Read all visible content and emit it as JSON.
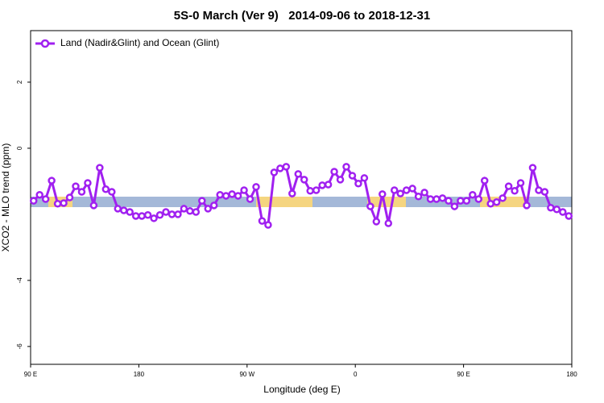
{
  "chart_data": {
    "type": "line",
    "title": "5S-0 March (Ver 9)   2014-09-06 to 2018-12-31",
    "x_label": "Longitude (deg E)",
    "y_label": "XCO2 - MLO trend (ppm)",
    "xlim": [
      90,
      540
    ],
    "xticks": [
      {
        "value": 90,
        "label": "90 E"
      },
      {
        "value": 180,
        "label": "180"
      },
      {
        "value": 270,
        "label": "90 W"
      },
      {
        "value": 360,
        "label": "0"
      },
      {
        "value": 450,
        "label": "90 E"
      },
      {
        "value": 540,
        "label": "180"
      }
    ],
    "ylim": [
      -6.54,
      3.56
    ],
    "yticks": [
      2,
      0,
      -4,
      -6
    ],
    "legend": "top-left",
    "x": [
      92.5,
      97.5,
      102.5,
      107.5,
      112.5,
      117.5,
      122.5,
      127.5,
      132.5,
      137.5,
      142.5,
      147.5,
      152.5,
      157.5,
      162.5,
      167.5,
      172.5,
      177.5,
      182.5,
      187.5,
      192.5,
      197.5,
      202.5,
      207.5,
      212.5,
      217.5,
      222.5,
      227.5,
      232.5,
      237.5,
      242.5,
      247.5,
      252.5,
      257.5,
      262.5,
      267.5,
      272.5,
      277.5,
      282.5,
      287.5,
      292.5,
      297.5,
      302.5,
      307.5,
      312.5,
      317.5,
      322.5,
      327.5,
      332.5,
      337.5,
      342.5,
      347.5,
      352.5,
      357.5,
      362.5,
      367.5,
      372.5,
      377.5,
      382.5,
      387.5,
      392.5,
      397.5,
      402.5,
      407.5,
      412.5,
      417.5,
      422.5,
      427.5,
      432.5,
      437.5,
      442.5,
      447.5,
      452.5,
      457.5,
      462.5,
      467.5,
      472.5,
      477.5,
      482.5,
      487.5,
      492.5,
      497.5,
      502.5,
      507.5,
      512.5,
      517.5,
      522.5,
      527.5,
      532.5,
      537.5
    ],
    "series": [
      {
        "name": "Land (Nadir&Glint) and Ocean (Glint)",
        "color": "#a020f0",
        "values": [
          -1.59,
          -1.41,
          -1.54,
          -0.98,
          -1.68,
          -1.66,
          -1.49,
          -1.15,
          -1.32,
          -1.05,
          -1.73,
          -0.59,
          -1.24,
          -1.32,
          -1.83,
          -1.88,
          -1.93,
          -2.05,
          -2.05,
          -2.02,
          -2.12,
          -2.02,
          -1.93,
          -2.0,
          -2.0,
          -1.83,
          -1.9,
          -1.93,
          -1.59,
          -1.83,
          -1.73,
          -1.41,
          -1.44,
          -1.39,
          -1.44,
          -1.27,
          -1.54,
          -1.17,
          -2.2,
          -2.32,
          -0.73,
          -0.61,
          -0.56,
          -1.37,
          -0.78,
          -0.95,
          -1.29,
          -1.27,
          -1.12,
          -1.1,
          -0.71,
          -0.95,
          -0.56,
          -0.83,
          -1.07,
          -0.9,
          -1.76,
          -2.22,
          -1.39,
          -2.27,
          -1.27,
          -1.37,
          -1.27,
          -1.22,
          -1.46,
          -1.34,
          -1.54,
          -1.54,
          -1.51,
          -1.59,
          -1.76,
          -1.59,
          -1.59,
          -1.41,
          -1.54,
          -0.98,
          -1.68,
          -1.63,
          -1.51,
          -1.15,
          -1.29,
          -1.05,
          -1.73,
          -0.59,
          -1.27,
          -1.32,
          -1.8,
          -1.85,
          -1.93,
          -2.05
        ]
      }
    ]
  }
}
